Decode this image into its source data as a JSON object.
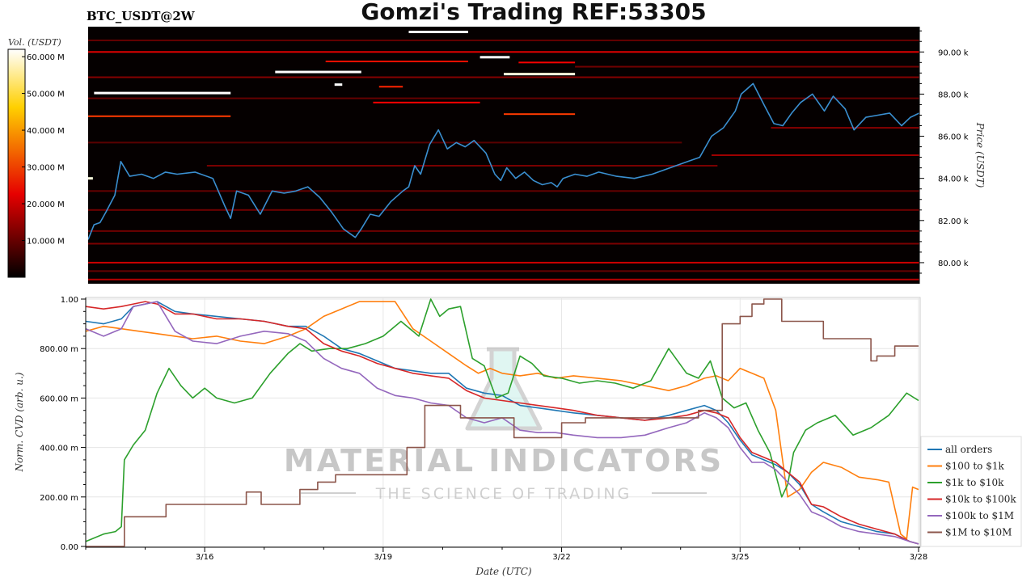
{
  "header": {
    "symbol": "BTC_USDT@2W",
    "title": "Gomzi's Trading REF:53305"
  },
  "watermark": {
    "brand": "MATERIAL INDICATORS",
    "tagline": "THE SCIENCE OF TRADING"
  },
  "colorbar": {
    "label": "Vol. (USDT)",
    "ticks": [
      "10.000 M",
      "20.000 M",
      "30.000 M",
      "40.000 M",
      "50.000 M",
      "60.000 M"
    ],
    "values": [
      10,
      20,
      30,
      40,
      50,
      60
    ],
    "max": 62,
    "colormap": "hot"
  },
  "chart_data": [
    {
      "type": "heatmap",
      "subtype": "price line over order-book liquidity heatmap",
      "ylabel": "Price (USDT)",
      "y_ticks": [
        "80.00 k",
        "82.00 k",
        "84.00 k",
        "86.00 k",
        "88.00 k",
        "90.00 k"
      ],
      "y_tick_values": [
        80000,
        82000,
        84000,
        86000,
        88000,
        90000
      ],
      "ylim": [
        79000,
        91200
      ],
      "xlim": [
        0,
        14
      ],
      "price_color": "#3a8fd0",
      "price_series": {
        "x": [
          0,
          0.1,
          0.2,
          0.3,
          0.45,
          0.55,
          0.7,
          0.9,
          1.1,
          1.3,
          1.5,
          1.8,
          2.1,
          2.3,
          2.4,
          2.5,
          2.7,
          2.9,
          3.1,
          3.3,
          3.5,
          3.7,
          3.9,
          4.1,
          4.3,
          4.5,
          4.6,
          4.75,
          4.9,
          5.1,
          5.3,
          5.4,
          5.5,
          5.6,
          5.75,
          5.9,
          6.05,
          6.2,
          6.35,
          6.5,
          6.7,
          6.85,
          6.95,
          7.05,
          7.2,
          7.35,
          7.5,
          7.65,
          7.8,
          7.9,
          8.0,
          8.2,
          8.4,
          8.6,
          8.9,
          9.2,
          9.5,
          9.8,
          10.1,
          10.3,
          10.5,
          10.7,
          10.9,
          11.0,
          11.2,
          11.4,
          11.55,
          11.7,
          11.85,
          12.0,
          12.2,
          12.4,
          12.55,
          12.75,
          12.9,
          13.1,
          13.3,
          13.5,
          13.7,
          13.85,
          14.0
        ],
        "y": [
          81.1,
          81.8,
          81.9,
          82.4,
          83.2,
          84.8,
          84.1,
          84.2,
          84.0,
          84.3,
          84.2,
          84.3,
          84.0,
          82.7,
          82.1,
          83.4,
          83.2,
          82.3,
          83.4,
          83.3,
          83.4,
          83.6,
          83.1,
          82.4,
          81.6,
          81.2,
          81.6,
          82.3,
          82.2,
          82.9,
          83.4,
          83.6,
          84.6,
          84.2,
          85.6,
          86.3,
          85.4,
          85.7,
          85.5,
          85.8,
          85.2,
          84.2,
          83.9,
          84.5,
          84.0,
          84.3,
          83.9,
          83.7,
          83.8,
          83.6,
          84.0,
          84.2,
          84.1,
          84.3,
          84.1,
          84.0,
          84.2,
          84.5,
          84.8,
          85.0,
          86.0,
          86.4,
          87.2,
          88.0,
          88.5,
          87.4,
          86.6,
          86.5,
          87.1,
          87.6,
          88.0,
          87.2,
          87.9,
          87.3,
          86.3,
          86.9,
          87.0,
          87.1,
          86.5,
          86.9,
          87.1
        ]
      },
      "liquidity_levels": [
        {
          "price": 90.95,
          "x": [
            5.4,
            6.4
          ],
          "vol": 62
        },
        {
          "price": 89.55,
          "x": [
            4.0,
            6.4
          ],
          "vol": 24
        },
        {
          "price": 89.5,
          "x": [
            7.25,
            8.2
          ],
          "vol": 22
        },
        {
          "price": 89.75,
          "x": [
            6.6,
            7.1
          ],
          "vol": 62
        },
        {
          "price": 89.05,
          "x": [
            3.15,
            4.6
          ],
          "vol": 62
        },
        {
          "price": 88.35,
          "x": [
            4.9,
            5.3
          ],
          "vol": 26
        },
        {
          "price": 88.45,
          "x": [
            4.15,
            4.28
          ],
          "vol": 62
        },
        {
          "price": 88.95,
          "x": [
            7.0,
            8.2
          ],
          "vol": 60
        },
        {
          "price": 88.05,
          "x": [
            0.1,
            2.4
          ],
          "vol": 62
        },
        {
          "price": 87.6,
          "x": [
            4.8,
            6.6
          ],
          "vol": 22
        },
        {
          "price": 87.05,
          "x": [
            7.0,
            8.2
          ],
          "vol": 28
        },
        {
          "price": 86.95,
          "x": [
            0.0,
            2.4
          ],
          "vol": 28
        },
        {
          "price": 84.0,
          "x": [
            0.0,
            0.08
          ],
          "vol": 60
        },
        {
          "price": 90.0,
          "x": [
            0.0,
            14.0
          ],
          "vol": 20
        },
        {
          "price": 80.0,
          "x": [
            0.0,
            14.0
          ],
          "vol": 18
        },
        {
          "price": 79.2,
          "x": [
            0.0,
            14.0
          ],
          "vol": 16
        },
        {
          "price": 85.1,
          "x": [
            10.5,
            14.0
          ],
          "vol": 14
        },
        {
          "price": 88.8,
          "x": [
            0.0,
            14.0
          ],
          "vol": 12
        },
        {
          "price": 86.4,
          "x": [
            11.5,
            14.0
          ],
          "vol": 12
        },
        {
          "price": 84.6,
          "x": [
            2.0,
            10.6
          ],
          "vol": 11
        },
        {
          "price": 82.5,
          "x": [
            0.0,
            14.0
          ],
          "vol": 10
        },
        {
          "price": 81.5,
          "x": [
            0.0,
            14.0
          ],
          "vol": 10
        },
        {
          "price": 83.4,
          "x": [
            0.0,
            14.0
          ],
          "vol": 9
        },
        {
          "price": 80.9,
          "x": [
            0.0,
            14.0
          ],
          "vol": 11
        },
        {
          "price": 89.3,
          "x": [
            8.2,
            14.0
          ],
          "vol": 10
        },
        {
          "price": 87.8,
          "x": [
            0.0,
            14.0
          ],
          "vol": 9
        },
        {
          "price": 85.7,
          "x": [
            0.0,
            10.0
          ],
          "vol": 8
        },
        {
          "price": 90.55,
          "x": [
            0.0,
            14.0
          ],
          "vol": 9
        },
        {
          "price": 79.6,
          "x": [
            0.0,
            14.0
          ],
          "vol": 9
        }
      ]
    },
    {
      "type": "line",
      "xlabel": "Date (UTC)",
      "ylabel": "Norm. CVD (arb. u.)",
      "x_ticks": [
        "3/16",
        "3/19",
        "3/22",
        "3/25",
        "3/28"
      ],
      "x_tick_values": [
        2,
        5,
        8,
        11,
        14
      ],
      "xlim": [
        0,
        14
      ],
      "y_ticks": [
        "0.00",
        "200.00 m",
        "400.00 m",
        "600.00 m",
        "800.00 m",
        "1.00"
      ],
      "y_tick_values": [
        0,
        0.2,
        0.4,
        0.6,
        0.8,
        1.0
      ],
      "ylim": [
        0,
        1.0
      ],
      "grid": true,
      "legend_position": "right",
      "series": [
        {
          "name": "all orders",
          "color": "#1f77b4",
          "step": false,
          "x": [
            0,
            0.3,
            0.6,
            0.8,
            1.0,
            1.2,
            1.5,
            1.8,
            2.2,
            2.6,
            3.0,
            3.4,
            3.7,
            4.0,
            4.3,
            4.6,
            4.9,
            5.2,
            5.5,
            5.8,
            6.1,
            6.4,
            6.7,
            7.0,
            7.3,
            7.6,
            7.9,
            8.2,
            8.6,
            9.0,
            9.4,
            9.8,
            10.1,
            10.4,
            10.6,
            10.8,
            11.0,
            11.2,
            11.4,
            11.6,
            11.8,
            12.0,
            12.2,
            12.4,
            12.7,
            13.0,
            13.3,
            13.6,
            13.85,
            14.0
          ],
          "y": [
            0.91,
            0.9,
            0.92,
            0.97,
            0.98,
            0.99,
            0.95,
            0.94,
            0.93,
            0.92,
            0.91,
            0.89,
            0.89,
            0.85,
            0.8,
            0.78,
            0.75,
            0.72,
            0.71,
            0.7,
            0.7,
            0.64,
            0.62,
            0.61,
            0.57,
            0.56,
            0.55,
            0.54,
            0.53,
            0.52,
            0.51,
            0.53,
            0.55,
            0.57,
            0.55,
            0.5,
            0.43,
            0.37,
            0.35,
            0.33,
            0.3,
            0.25,
            0.17,
            0.14,
            0.1,
            0.08,
            0.06,
            0.05,
            0.02,
            0.01
          ]
        },
        {
          "name": "$100 to $1k",
          "color": "#ff7f0e",
          "step": false,
          "x": [
            0,
            0.3,
            0.6,
            0.9,
            1.2,
            1.5,
            1.8,
            2.2,
            2.6,
            3.0,
            3.4,
            3.7,
            4.0,
            4.3,
            4.6,
            4.8,
            5.0,
            5.2,
            5.5,
            5.8,
            6.1,
            6.4,
            6.6,
            6.8,
            7.0,
            7.3,
            7.6,
            7.9,
            8.2,
            8.6,
            9.0,
            9.4,
            9.8,
            10.1,
            10.4,
            10.6,
            10.8,
            11.0,
            11.2,
            11.4,
            11.6,
            11.8,
            12.0,
            12.2,
            12.4,
            12.7,
            13.0,
            13.3,
            13.5,
            13.7,
            13.8,
            13.9,
            14.0
          ],
          "y": [
            0.87,
            0.89,
            0.88,
            0.87,
            0.86,
            0.85,
            0.84,
            0.85,
            0.83,
            0.82,
            0.85,
            0.88,
            0.93,
            0.96,
            0.99,
            0.99,
            0.99,
            0.99,
            0.88,
            0.83,
            0.78,
            0.73,
            0.7,
            0.72,
            0.7,
            0.69,
            0.7,
            0.68,
            0.69,
            0.68,
            0.67,
            0.65,
            0.63,
            0.65,
            0.68,
            0.69,
            0.67,
            0.72,
            0.7,
            0.68,
            0.55,
            0.2,
            0.23,
            0.3,
            0.34,
            0.32,
            0.28,
            0.27,
            0.26,
            0.05,
            0.03,
            0.24,
            0.23
          ]
        },
        {
          "name": "$1k to $10k",
          "color": "#2ca02c",
          "step": false,
          "x": [
            0,
            0.3,
            0.5,
            0.6,
            0.65,
            0.8,
            1.0,
            1.2,
            1.4,
            1.6,
            1.8,
            2.0,
            2.2,
            2.5,
            2.8,
            3.1,
            3.4,
            3.6,
            3.8,
            4.1,
            4.4,
            4.7,
            5.0,
            5.3,
            5.6,
            5.8,
            5.95,
            6.1,
            6.3,
            6.5,
            6.7,
            6.9,
            7.1,
            7.3,
            7.5,
            7.7,
            8.0,
            8.3,
            8.6,
            8.9,
            9.2,
            9.5,
            9.8,
            10.1,
            10.3,
            10.5,
            10.7,
            10.9,
            11.1,
            11.3,
            11.5,
            11.7,
            11.8,
            11.9,
            12.1,
            12.3,
            12.6,
            12.9,
            13.2,
            13.5,
            13.8,
            14.0
          ],
          "y": [
            0.02,
            0.05,
            0.06,
            0.08,
            0.35,
            0.41,
            0.47,
            0.62,
            0.72,
            0.65,
            0.6,
            0.64,
            0.6,
            0.58,
            0.6,
            0.7,
            0.78,
            0.82,
            0.79,
            0.8,
            0.8,
            0.82,
            0.85,
            0.91,
            0.85,
            1.0,
            0.93,
            0.96,
            0.97,
            0.76,
            0.73,
            0.6,
            0.62,
            0.77,
            0.74,
            0.69,
            0.68,
            0.66,
            0.67,
            0.66,
            0.64,
            0.67,
            0.8,
            0.7,
            0.68,
            0.75,
            0.6,
            0.56,
            0.58,
            0.47,
            0.38,
            0.2,
            0.25,
            0.38,
            0.47,
            0.5,
            0.53,
            0.45,
            0.48,
            0.53,
            0.62,
            0.59
          ]
        },
        {
          "name": "$10k to $100k",
          "color": "#d62728",
          "step": false,
          "x": [
            0,
            0.3,
            0.6,
            0.8,
            1.0,
            1.2,
            1.5,
            1.8,
            2.2,
            2.6,
            3.0,
            3.4,
            3.7,
            4.0,
            4.3,
            4.6,
            4.9,
            5.2,
            5.5,
            5.8,
            6.1,
            6.4,
            6.7,
            7.0,
            7.3,
            7.6,
            7.9,
            8.2,
            8.6,
            9.0,
            9.4,
            9.8,
            10.1,
            10.4,
            10.6,
            10.8,
            11.0,
            11.2,
            11.4,
            11.6,
            11.8,
            12.0,
            12.2,
            12.4,
            12.7,
            13.0,
            13.3,
            13.6,
            13.85,
            14.0
          ],
          "y": [
            0.97,
            0.96,
            0.97,
            0.98,
            0.99,
            0.98,
            0.94,
            0.94,
            0.92,
            0.92,
            0.91,
            0.89,
            0.88,
            0.82,
            0.79,
            0.77,
            0.74,
            0.72,
            0.7,
            0.69,
            0.68,
            0.63,
            0.6,
            0.59,
            0.58,
            0.57,
            0.56,
            0.55,
            0.53,
            0.52,
            0.51,
            0.52,
            0.53,
            0.55,
            0.54,
            0.52,
            0.44,
            0.38,
            0.36,
            0.34,
            0.3,
            0.26,
            0.17,
            0.16,
            0.12,
            0.09,
            0.07,
            0.05,
            0.02,
            0.01
          ]
        },
        {
          "name": "$100k to $1M",
          "color": "#9467bd",
          "step": false,
          "x": [
            0,
            0.3,
            0.6,
            0.8,
            1.0,
            1.2,
            1.5,
            1.8,
            2.2,
            2.6,
            3.0,
            3.4,
            3.7,
            4.0,
            4.3,
            4.6,
            4.9,
            5.2,
            5.5,
            5.8,
            6.1,
            6.4,
            6.7,
            7.0,
            7.3,
            7.6,
            7.9,
            8.2,
            8.6,
            9.0,
            9.4,
            9.8,
            10.1,
            10.4,
            10.6,
            10.8,
            11.0,
            11.2,
            11.4,
            11.6,
            11.8,
            12.0,
            12.2,
            12.4,
            12.7,
            13.0,
            13.3,
            13.6,
            13.85,
            14.0
          ],
          "y": [
            0.88,
            0.85,
            0.88,
            0.97,
            0.98,
            0.99,
            0.87,
            0.83,
            0.82,
            0.85,
            0.87,
            0.86,
            0.83,
            0.76,
            0.72,
            0.7,
            0.64,
            0.61,
            0.6,
            0.58,
            0.57,
            0.52,
            0.5,
            0.52,
            0.47,
            0.46,
            0.46,
            0.45,
            0.44,
            0.44,
            0.45,
            0.48,
            0.5,
            0.54,
            0.52,
            0.48,
            0.4,
            0.34,
            0.34,
            0.31,
            0.26,
            0.21,
            0.14,
            0.12,
            0.08,
            0.06,
            0.05,
            0.04,
            0.02,
            0.01
          ]
        },
        {
          "name": "$1M to $10M",
          "color": "#8c564b",
          "step": true,
          "x": [
            0,
            0.5,
            0.65,
            1.3,
            1.35,
            2.4,
            2.7,
            2.95,
            3.6,
            3.9,
            4.2,
            5.4,
            5.7,
            6.3,
            7.2,
            8.0,
            8.4,
            10.3,
            10.7,
            11.0,
            11.2,
            11.4,
            11.7,
            12.4,
            13.2,
            13.3,
            13.6,
            14.0
          ],
          "y": [
            0.0,
            0.0,
            0.12,
            0.12,
            0.17,
            0.17,
            0.22,
            0.17,
            0.23,
            0.26,
            0.29,
            0.4,
            0.57,
            0.52,
            0.44,
            0.5,
            0.52,
            0.55,
            0.9,
            0.93,
            0.98,
            1.0,
            0.91,
            0.84,
            0.75,
            0.77,
            0.81,
            0.81
          ]
        }
      ]
    }
  ]
}
